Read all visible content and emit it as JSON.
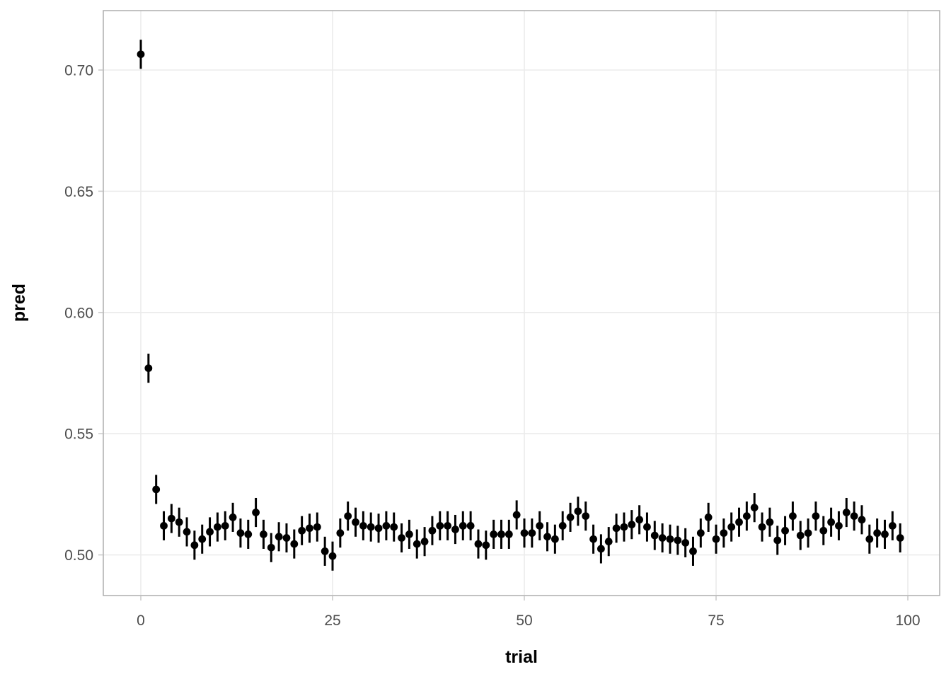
{
  "chart_data": {
    "type": "pointrange",
    "title": "",
    "xlabel": "trial",
    "ylabel": "pred",
    "x_tick_values": [
      0,
      25,
      50,
      75,
      100
    ],
    "x_tick_labels": [
      "0",
      "25",
      "50",
      "75",
      "100"
    ],
    "y_tick_values": [
      0.5,
      0.55,
      0.6,
      0.65,
      0.7
    ],
    "y_tick_labels": [
      "0.50",
      "0.55",
      "0.60",
      "0.65",
      "0.70"
    ],
    "xlim": [
      -4.889,
      104.151
    ],
    "ylim": [
      0.48323,
      0.72451
    ],
    "grid": "major-only",
    "legend": "none",
    "point_color": "#000000",
    "ci_halfwidth": 0.006,
    "x_note": "trial = index 0..99, consecutive",
    "series": [
      {
        "name": "pred",
        "y": [
          0.7065,
          0.577,
          0.527,
          0.512,
          0.515,
          0.5135,
          0.5095,
          0.504,
          0.5065,
          0.5095,
          0.5115,
          0.512,
          0.5155,
          0.509,
          0.5085,
          0.5175,
          0.5085,
          0.503,
          0.5075,
          0.507,
          0.5045,
          0.51,
          0.511,
          0.5115,
          0.5015,
          0.4995,
          0.509,
          0.516,
          0.5135,
          0.512,
          0.5115,
          0.511,
          0.512,
          0.5115,
          0.507,
          0.5085,
          0.5045,
          0.5055,
          0.51,
          0.512,
          0.512,
          0.5105,
          0.512,
          0.512,
          0.5045,
          0.504,
          0.5085,
          0.5085,
          0.5085,
          0.5165,
          0.509,
          0.509,
          0.512,
          0.5075,
          0.5065,
          0.512,
          0.5155,
          0.518,
          0.516,
          0.5065,
          0.5025,
          0.5055,
          0.511,
          0.5115,
          0.5125,
          0.5145,
          0.5115,
          0.508,
          0.507,
          0.5065,
          0.506,
          0.505,
          0.5015,
          0.509,
          0.5155,
          0.5065,
          0.509,
          0.5115,
          0.5135,
          0.516,
          0.5195,
          0.5115,
          0.5135,
          0.506,
          0.51,
          0.516,
          0.508,
          0.509,
          0.516,
          0.51,
          0.5135,
          0.512,
          0.5175,
          0.516,
          0.5145,
          0.5065,
          0.509,
          0.5085,
          0.512,
          0.507
        ]
      }
    ]
  },
  "colors": {
    "background": "#ffffff",
    "panel_border": "#a9a9a9",
    "gridline": "#ebebeb",
    "tick_mark": "#cccccc",
    "tick_label": "#4d4d4d",
    "axis_title": "#000000",
    "point": "#000000"
  }
}
